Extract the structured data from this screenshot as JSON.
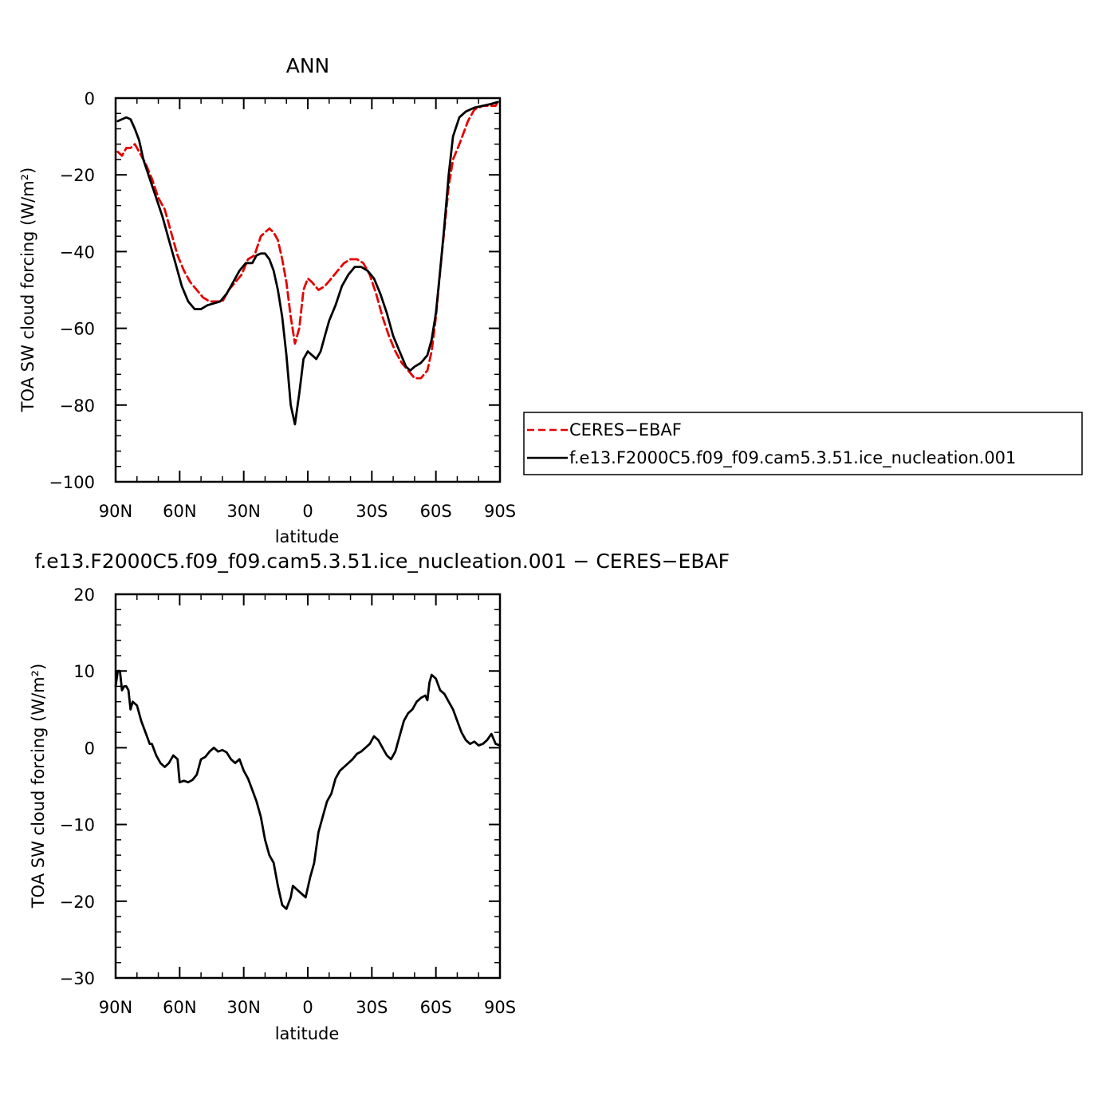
{
  "chart_data": [
    {
      "type": "line",
      "title": "ANN",
      "xlabel": "latitude",
      "ylabel": "TOA SW cloud forcing (W/m²)",
      "xlim": [
        90,
        -90
      ],
      "ylim": [
        -100,
        0
      ],
      "x_ticks": [
        {
          "value": 90,
          "label": "90N"
        },
        {
          "value": 60,
          "label": "60N"
        },
        {
          "value": 30,
          "label": "30N"
        },
        {
          "value": 0,
          "label": "0"
        },
        {
          "value": -30,
          "label": "30S"
        },
        {
          "value": -60,
          "label": "60S"
        },
        {
          "value": -90,
          "label": "90S"
        }
      ],
      "y_ticks": [
        {
          "value": 0,
          "label": "0"
        },
        {
          "value": -20,
          "label": "−20"
        },
        {
          "value": -40,
          "label": "−40"
        },
        {
          "value": -60,
          "label": "−60"
        },
        {
          "value": -80,
          "label": "−80"
        },
        {
          "value": -100,
          "label": "−100"
        }
      ],
      "legend": "right",
      "series": [
        {
          "name": "CERES−EBAF",
          "color": "#e60000",
          "dash": "dashed",
          "points": [
            [
              89,
              -14
            ],
            [
              87,
              -15
            ],
            [
              85,
              -13
            ],
            [
              83,
              -13
            ],
            [
              81,
              -12
            ],
            [
              79,
              -14
            ],
            [
              76,
              -17
            ],
            [
              73,
              -21
            ],
            [
              70,
              -26
            ],
            [
              67,
              -29
            ],
            [
              64,
              -35
            ],
            [
              61,
              -41
            ],
            [
              58,
              -45
            ],
            [
              55,
              -48
            ],
            [
              52,
              -50
            ],
            [
              49,
              -52
            ],
            [
              46,
              -53
            ],
            [
              43,
              -53
            ],
            [
              40,
              -53
            ],
            [
              37,
              -50
            ],
            [
              34,
              -48
            ],
            [
              31,
              -46
            ],
            [
              28,
              -42
            ],
            [
              25,
              -41
            ],
            [
              22,
              -36
            ],
            [
              20,
              -35
            ],
            [
              18,
              -34
            ],
            [
              16,
              -35
            ],
            [
              14,
              -37
            ],
            [
              12,
              -42
            ],
            [
              10,
              -48
            ],
            [
              8,
              -57
            ],
            [
              6,
              -64
            ],
            [
              4,
              -60
            ],
            [
              2,
              -50
            ],
            [
              0,
              -47
            ],
            [
              -2,
              -48
            ],
            [
              -5,
              -50
            ],
            [
              -8,
              -49
            ],
            [
              -11,
              -47
            ],
            [
              -14,
              -45
            ],
            [
              -17,
              -43
            ],
            [
              -20,
              -42
            ],
            [
              -23,
              -42
            ],
            [
              -26,
              -43
            ],
            [
              -29,
              -46
            ],
            [
              -32,
              -51
            ],
            [
              -35,
              -57
            ],
            [
              -38,
              -62
            ],
            [
              -41,
              -66
            ],
            [
              -44,
              -69
            ],
            [
              -47,
              -71
            ],
            [
              -50,
              -73
            ],
            [
              -53,
              -73
            ],
            [
              -56,
              -71
            ],
            [
              -58,
              -66
            ],
            [
              -60,
              -57
            ],
            [
              -62,
              -45
            ],
            [
              -64,
              -34
            ],
            [
              -66,
              -23
            ],
            [
              -68,
              -16
            ],
            [
              -71,
              -12
            ],
            [
              -73,
              -9
            ],
            [
              -75,
              -6
            ],
            [
              -78,
              -3
            ],
            [
              -82,
              -2
            ],
            [
              -86,
              -2
            ],
            [
              -88,
              -2
            ],
            [
              -89,
              -1
            ]
          ]
        },
        {
          "name": "f.e13.F2000C5.f09_f09.cam5.3.51.ice_nucleation.001",
          "color": "#000000",
          "dash": "solid",
          "points": [
            [
              89,
              -6
            ],
            [
              87,
              -5.5
            ],
            [
              85,
              -5
            ],
            [
              83,
              -5.5
            ],
            [
              81,
              -8
            ],
            [
              79,
              -11
            ],
            [
              77,
              -16
            ],
            [
              74,
              -21
            ],
            [
              71,
              -26
            ],
            [
              68,
              -31
            ],
            [
              65,
              -37
            ],
            [
              62,
              -43
            ],
            [
              59,
              -49
            ],
            [
              56,
              -53
            ],
            [
              53,
              -55
            ],
            [
              50,
              -55
            ],
            [
              47,
              -54
            ],
            [
              44,
              -53.5
            ],
            [
              41,
              -53
            ],
            [
              38,
              -51
            ],
            [
              35,
              -48
            ],
            [
              32,
              -45
            ],
            [
              29,
              -43
            ],
            [
              26,
              -43
            ],
            [
              24,
              -41
            ],
            [
              22,
              -40.5
            ],
            [
              20,
              -40.5
            ],
            [
              18,
              -42
            ],
            [
              16,
              -45
            ],
            [
              14,
              -50
            ],
            [
              12,
              -57
            ],
            [
              10,
              -67
            ],
            [
              8,
              -80
            ],
            [
              6,
              -85
            ],
            [
              4,
              -77
            ],
            [
              2,
              -68
            ],
            [
              0,
              -66
            ],
            [
              -2,
              -67
            ],
            [
              -4,
              -68
            ],
            [
              -6,
              -66
            ],
            [
              -8,
              -62
            ],
            [
              -10,
              -58
            ],
            [
              -13,
              -54
            ],
            [
              -16,
              -49
            ],
            [
              -19,
              -46
            ],
            [
              -22,
              -44
            ],
            [
              -25,
              -44
            ],
            [
              -28,
              -45
            ],
            [
              -31,
              -47
            ],
            [
              -34,
              -51
            ],
            [
              -37,
              -56
            ],
            [
              -40,
              -62
            ],
            [
              -43,
              -66
            ],
            [
              -46,
              -70
            ],
            [
              -48,
              -71
            ],
            [
              -50,
              -70
            ],
            [
              -53,
              -69
            ],
            [
              -56,
              -67
            ],
            [
              -58,
              -63
            ],
            [
              -60,
              -56
            ],
            [
              -62,
              -45
            ],
            [
              -64,
              -33
            ],
            [
              -66,
              -20
            ],
            [
              -68,
              -10
            ],
            [
              -71,
              -5
            ],
            [
              -74,
              -3.5
            ],
            [
              -78,
              -2.5
            ],
            [
              -82,
              -2
            ],
            [
              -86,
              -1.5
            ],
            [
              -89,
              -1
            ]
          ]
        }
      ]
    },
    {
      "type": "line",
      "title": "f.e13.F2000C5.f09_f09.cam5.3.51.ice_nucleation.001 − CERES−EBAF",
      "xlabel": "latitude",
      "ylabel": "TOA SW cloud forcing (W/m²)",
      "xlim": [
        90,
        -90
      ],
      "ylim": [
        -30,
        20
      ],
      "x_ticks": [
        {
          "value": 90,
          "label": "90N"
        },
        {
          "value": 60,
          "label": "60N"
        },
        {
          "value": 30,
          "label": "30N"
        },
        {
          "value": 0,
          "label": "0"
        },
        {
          "value": -30,
          "label": "30S"
        },
        {
          "value": -60,
          "label": "60S"
        },
        {
          "value": -90,
          "label": "90S"
        }
      ],
      "y_ticks": [
        {
          "value": 20,
          "label": "20"
        },
        {
          "value": 10,
          "label": "10"
        },
        {
          "value": 0,
          "label": "0"
        },
        {
          "value": -10,
          "label": "−10"
        },
        {
          "value": -20,
          "label": "−20"
        },
        {
          "value": -30,
          "label": "−30"
        }
      ],
      "series": [
        {
          "color": "#000000",
          "dash": "solid",
          "points": [
            [
              90,
              8
            ],
            [
              89,
              10
            ],
            [
              88,
              10
            ],
            [
              87,
              7.5
            ],
            [
              86,
              8
            ],
            [
              85,
              8
            ],
            [
              84,
              7.5
            ],
            [
              83,
              5
            ],
            [
              82,
              6
            ],
            [
              80,
              5.5
            ],
            [
              78,
              3.5
            ],
            [
              76,
              2
            ],
            [
              74,
              0.5
            ],
            [
              73,
              0.5
            ],
            [
              71,
              -1
            ],
            [
              69,
              -2
            ],
            [
              67,
              -2.5
            ],
            [
              65,
              -2
            ],
            [
              63,
              -1
            ],
            [
              61,
              -1.5
            ],
            [
              60,
              -4.5
            ],
            [
              58,
              -4.3
            ],
            [
              56,
              -4.5
            ],
            [
              54,
              -4.2
            ],
            [
              52,
              -3.5
            ],
            [
              50,
              -1.5
            ],
            [
              48,
              -1.2
            ],
            [
              46,
              -0.5
            ],
            [
              44,
              0
            ],
            [
              42,
              -0.5
            ],
            [
              40,
              -0.3
            ],
            [
              38,
              -0.6
            ],
            [
              36,
              -1.5
            ],
            [
              34,
              -2
            ],
            [
              32,
              -1.5
            ],
            [
              30,
              -3
            ],
            [
              28,
              -4
            ],
            [
              26,
              -5.5
            ],
            [
              24,
              -7
            ],
            [
              22,
              -9
            ],
            [
              20,
              -12
            ],
            [
              18,
              -14
            ],
            [
              16,
              -15
            ],
            [
              14,
              -18
            ],
            [
              12,
              -20.5
            ],
            [
              10,
              -21
            ],
            [
              8,
              -19.5
            ],
            [
              7,
              -18
            ],
            [
              5,
              -18.5
            ],
            [
              3,
              -19
            ],
            [
              1,
              -19.5
            ],
            [
              -1,
              -17
            ],
            [
              -3,
              -15
            ],
            [
              -5,
              -11
            ],
            [
              -7,
              -9
            ],
            [
              -9,
              -7
            ],
            [
              -11,
              -6
            ],
            [
              -13,
              -4
            ],
            [
              -15,
              -3
            ],
            [
              -17,
              -2.5
            ],
            [
              -19,
              -2
            ],
            [
              -21,
              -1.5
            ],
            [
              -23,
              -0.8
            ],
            [
              -25,
              -0.5
            ],
            [
              -27,
              0
            ],
            [
              -29,
              0.5
            ],
            [
              -31,
              1.5
            ],
            [
              -33,
              1
            ],
            [
              -35,
              0
            ],
            [
              -37,
              -1
            ],
            [
              -39,
              -1.5
            ],
            [
              -41,
              -0.5
            ],
            [
              -43,
              1.5
            ],
            [
              -45,
              3.5
            ],
            [
              -47,
              4.5
            ],
            [
              -49,
              5
            ],
            [
              -51,
              6
            ],
            [
              -53,
              6.5
            ],
            [
              -55,
              6.8
            ],
            [
              -56,
              6.2
            ],
            [
              -57,
              8.5
            ],
            [
              -58,
              9.5
            ],
            [
              -60,
              9
            ],
            [
              -62,
              7.5
            ],
            [
              -64,
              7
            ],
            [
              -66,
              6
            ],
            [
              -68,
              5
            ],
            [
              -70,
              3.5
            ],
            [
              -72,
              2
            ],
            [
              -74,
              1
            ],
            [
              -76,
              0.5
            ],
            [
              -78,
              0.8
            ],
            [
              -80,
              0.3
            ],
            [
              -82,
              0.5
            ],
            [
              -84,
              1
            ],
            [
              -86,
              1.8
            ],
            [
              -88,
              0.5
            ],
            [
              -90,
              0.3
            ]
          ]
        }
      ]
    }
  ]
}
